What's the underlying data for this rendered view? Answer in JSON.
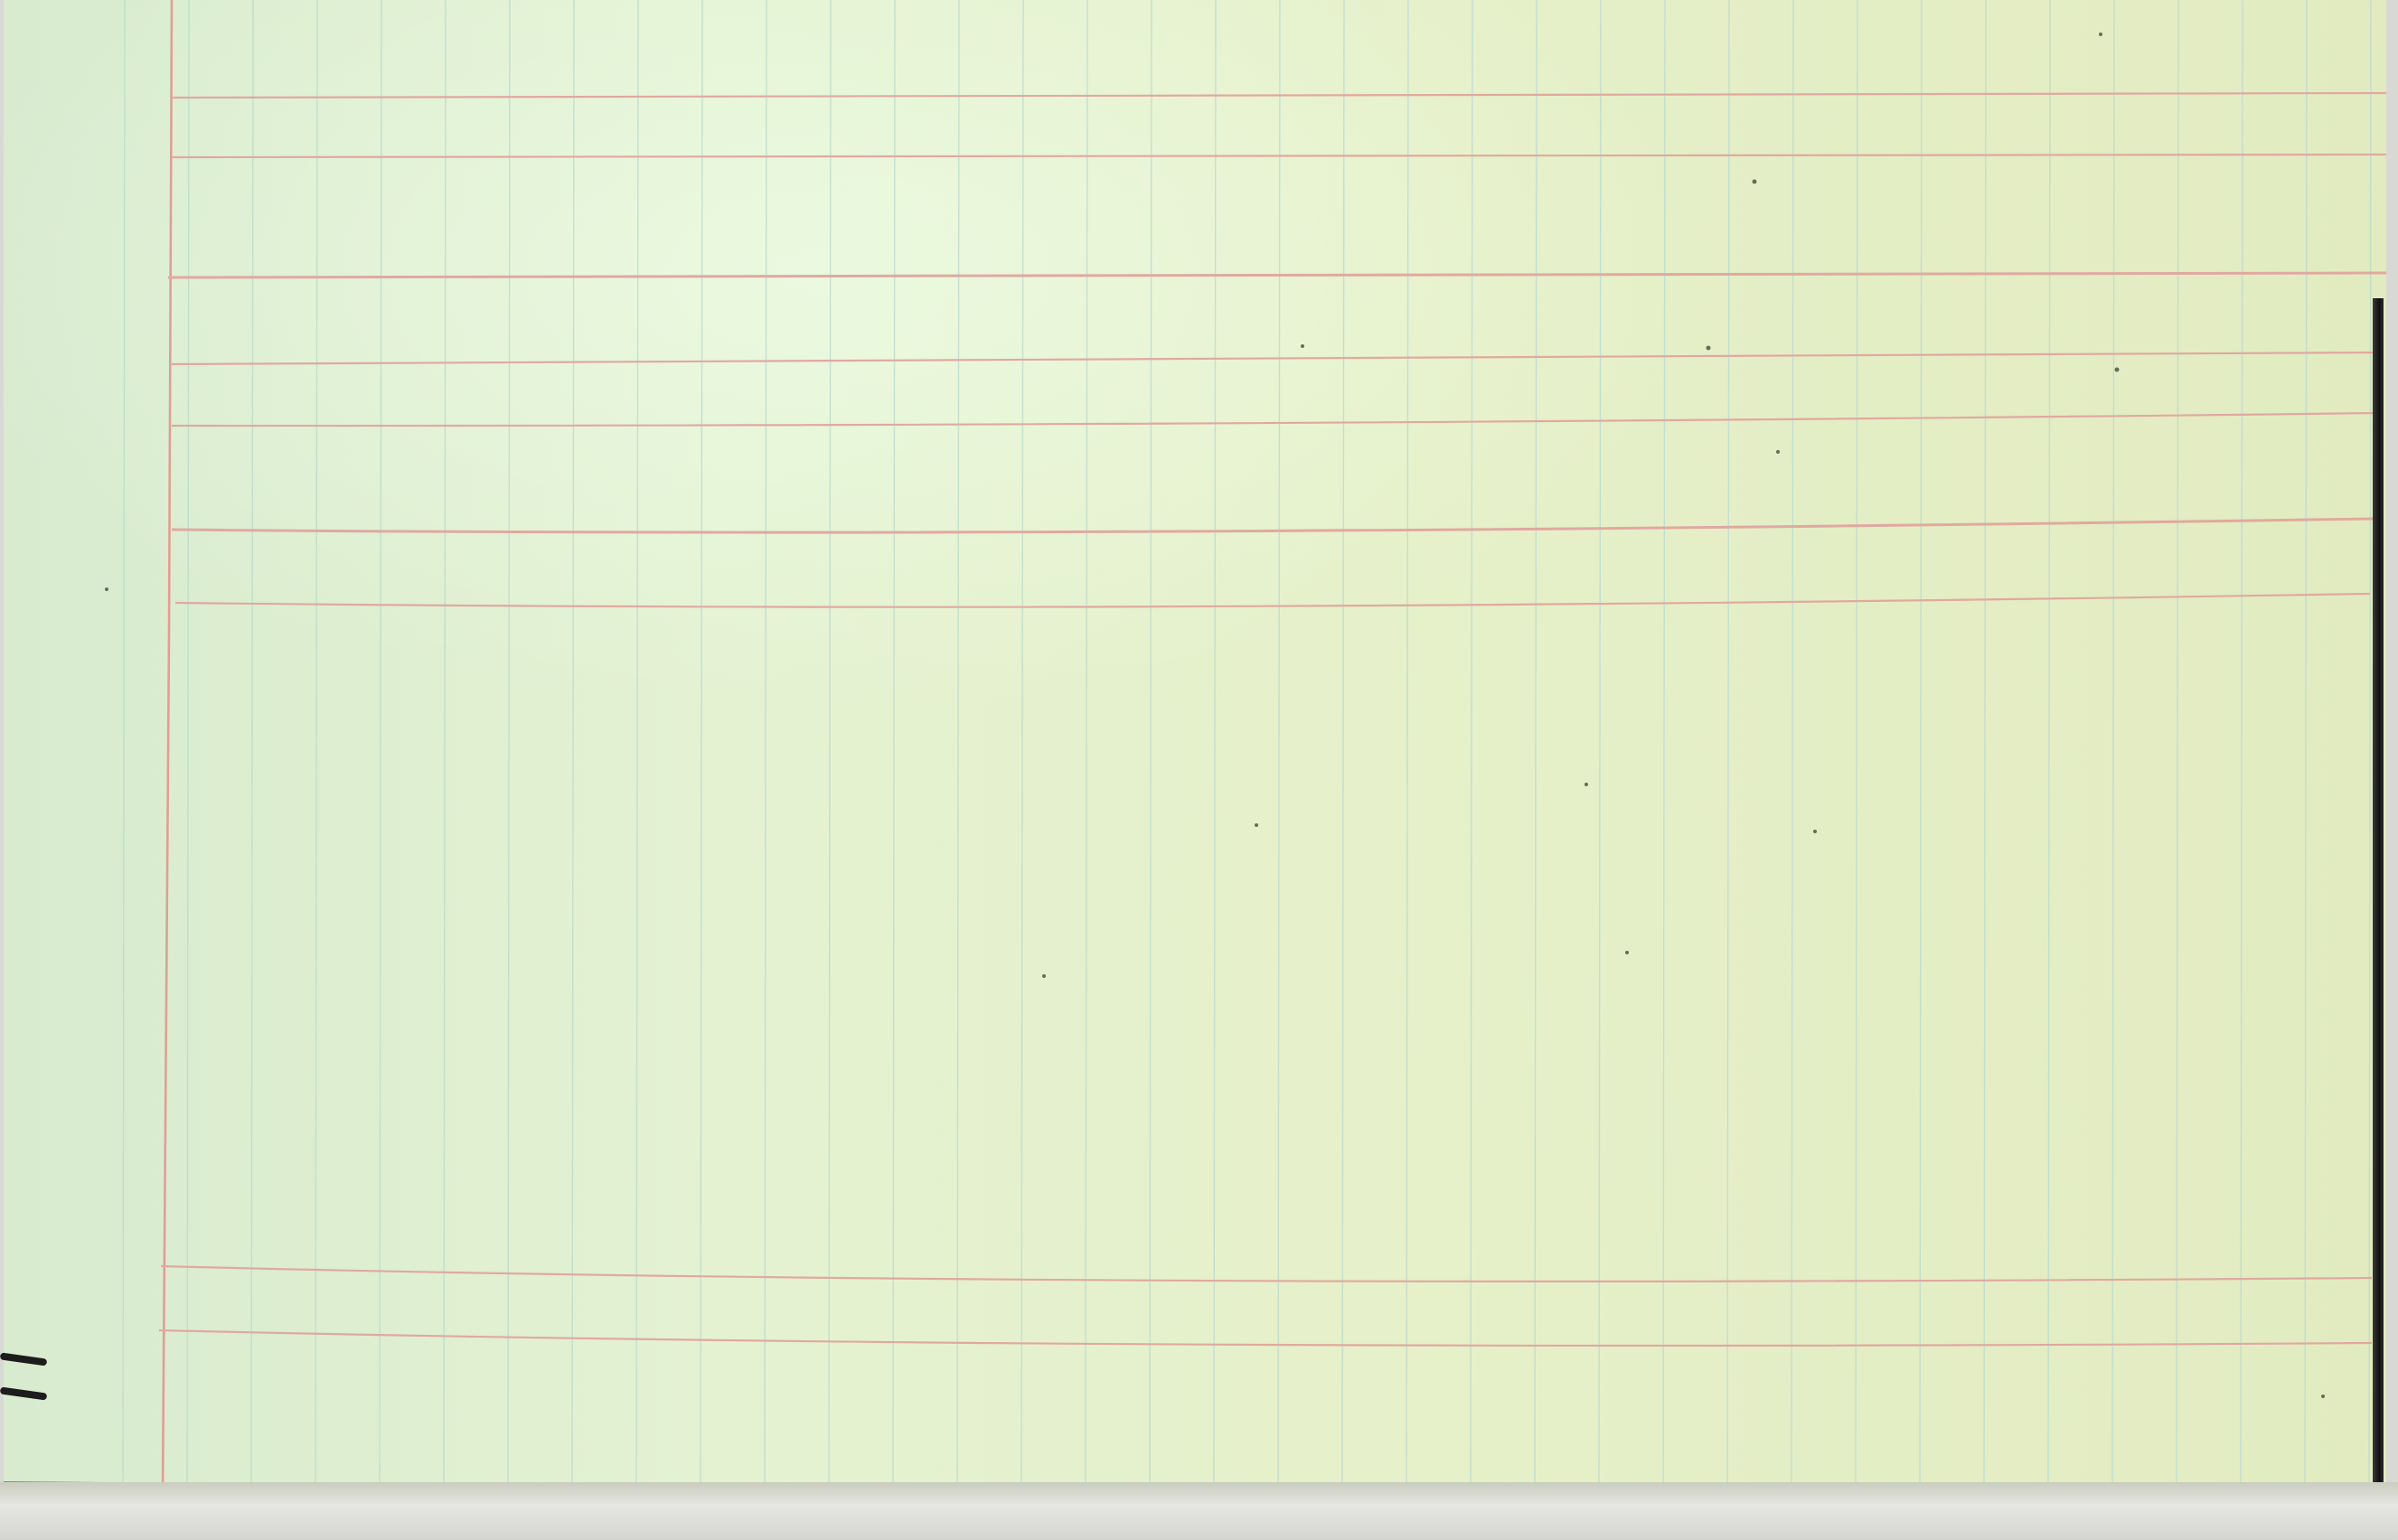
{
  "document": {
    "kind": "blank ruled ledger sheet",
    "paper_color": "#e3efcc",
    "rule_color": "#e0a9a0",
    "column_rule_color": "#b7d9cf"
  },
  "icons": {
    "binding_marks": "left-binding-marks-icon"
  }
}
